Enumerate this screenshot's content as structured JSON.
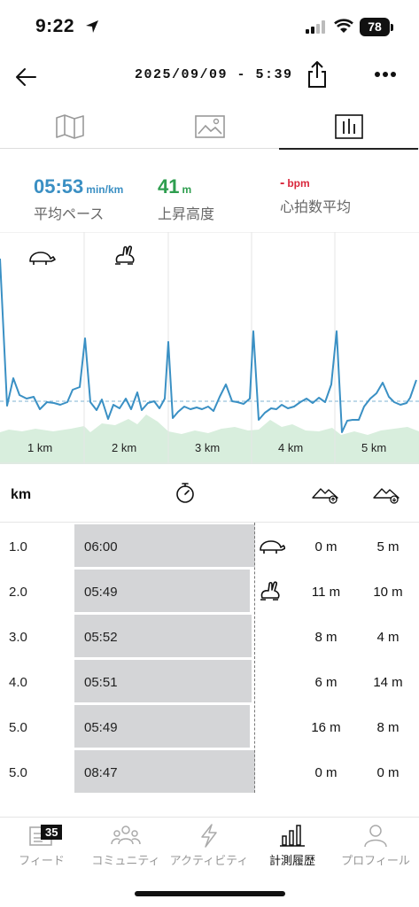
{
  "status_bar": {
    "time": "9:22",
    "battery": "78"
  },
  "header": {
    "title": "2025/09/09 - 5:39"
  },
  "tabs": [
    {
      "icon": "map-icon",
      "active": false
    },
    {
      "icon": "image-icon",
      "active": false
    },
    {
      "icon": "bar-chart-icon",
      "active": true
    }
  ],
  "stats": {
    "pace": {
      "value": "05:53",
      "unit": "min/km",
      "label": "平均ペース",
      "color": "#3a8fc3"
    },
    "elevation": {
      "value": "41",
      "unit": "m",
      "label": "上昇高度",
      "color": "#2e9e4f"
    },
    "heart_rate": {
      "value": "-",
      "unit": "bpm",
      "label": "心拍数平均",
      "color": "#d9263b"
    }
  },
  "chart": {
    "km_labels": [
      "1 km",
      "2 km",
      "3 km",
      "4 km",
      "5 km"
    ],
    "line_color": "#3a90c4",
    "area_color": "#d8eedd"
  },
  "table": {
    "header": {
      "km": "km",
      "pace_icon": "stopwatch-icon",
      "up_icon": "ascent-icon",
      "down_icon": "descent-icon"
    },
    "rows": [
      {
        "km": "1.0",
        "pace": "06:00",
        "up": "0 m",
        "down": "5 m",
        "fill": 1.0,
        "marker": "turtle-icon"
      },
      {
        "km": "2.0",
        "pace": "05:49",
        "up": "11 m",
        "down": "10 m",
        "fill": 0.97,
        "marker": "rabbit-icon"
      },
      {
        "km": "3.0",
        "pace": "05:52",
        "up": "8 m",
        "down": "4 m",
        "fill": 0.98,
        "marker": ""
      },
      {
        "km": "4.0",
        "pace": "05:51",
        "up": "6 m",
        "down": "14 m",
        "fill": 0.98,
        "marker": ""
      },
      {
        "km": "5.0",
        "pace": "05:49",
        "up": "16 m",
        "down": "8 m",
        "fill": 0.97,
        "marker": ""
      },
      {
        "km": "5.0",
        "pace": "08:47",
        "up": "0 m",
        "down": "0 m",
        "fill": 1.0,
        "marker": ""
      }
    ]
  },
  "nav": {
    "items": [
      {
        "label": "フィード",
        "icon": "feed-icon",
        "badge": "35",
        "active": false
      },
      {
        "label": "コミュニティ",
        "icon": "community-icon",
        "active": false
      },
      {
        "label": "アクティビティ",
        "icon": "activity-bolt-icon",
        "active": false
      },
      {
        "label": "計測履歴",
        "icon": "history-bars-icon",
        "active": true
      },
      {
        "label": "プロフィール",
        "icon": "profile-icon",
        "active": false
      }
    ]
  }
}
